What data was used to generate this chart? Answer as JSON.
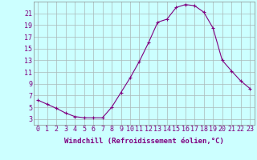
{
  "x": [
    0,
    1,
    2,
    3,
    4,
    5,
    6,
    7,
    8,
    9,
    10,
    11,
    12,
    13,
    14,
    15,
    16,
    17,
    18,
    19,
    20,
    21,
    22,
    23
  ],
  "y": [
    6.2,
    5.5,
    4.8,
    4.0,
    3.4,
    3.2,
    3.2,
    3.2,
    5.0,
    7.5,
    10.0,
    12.8,
    16.0,
    19.5,
    20.0,
    22.0,
    22.5,
    22.3,
    21.2,
    18.5,
    13.0,
    11.2,
    9.5,
    8.2
  ],
  "line_color": "#800080",
  "marker": "+",
  "marker_size": 3,
  "marker_lw": 0.8,
  "bg_color": "#ccffff",
  "grid_color": "#aab8b8",
  "xlabel": "Windchill (Refroidissement éolien,°C)",
  "xlim": [
    -0.5,
    23.5
  ],
  "ylim": [
    2,
    23
  ],
  "yticks": [
    3,
    5,
    7,
    9,
    11,
    13,
    15,
    17,
    19,
    21
  ],
  "xticks": [
    0,
    1,
    2,
    3,
    4,
    5,
    6,
    7,
    8,
    9,
    10,
    11,
    12,
    13,
    14,
    15,
    16,
    17,
    18,
    19,
    20,
    21,
    22,
    23
  ],
  "xlabel_fontsize": 6.5,
  "tick_fontsize": 6.0,
  "line_width": 0.8
}
